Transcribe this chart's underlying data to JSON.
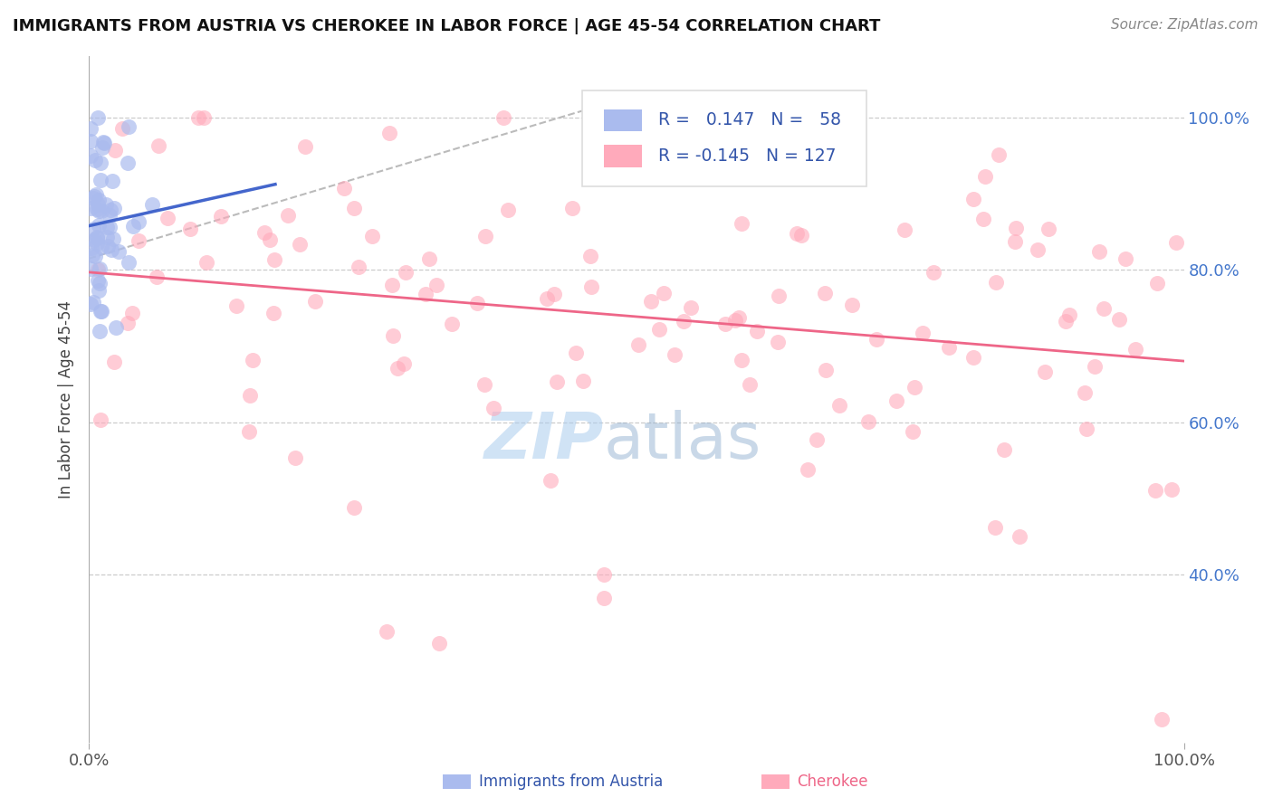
{
  "title": "IMMIGRANTS FROM AUSTRIA VS CHEROKEE IN LABOR FORCE | AGE 45-54 CORRELATION CHART",
  "source": "Source: ZipAtlas.com",
  "ylabel": "In Labor Force | Age 45-54",
  "austria_R": 0.147,
  "austria_N": 58,
  "cherokee_R": -0.145,
  "cherokee_N": 127,
  "austria_color": "#aabbee",
  "cherokee_color": "#ffaabb",
  "austria_line_color": "#4466cc",
  "cherokee_line_color": "#ee6688",
  "ref_line_color": "#bbbbbb",
  "background_color": "#ffffff",
  "grid_color": "#cccccc",
  "title_color": "#111111",
  "annotation_color": "#3355aa",
  "right_tick_color": "#4477cc",
  "xlim": [
    0.0,
    1.0
  ],
  "ylim": [
    0.18,
    1.08
  ],
  "yticks": [
    0.4,
    0.6,
    0.8,
    1.0
  ],
  "ytick_labels": [
    "40.0%",
    "60.0%",
    "80.0%",
    "100.0%"
  ],
  "xticks": [
    0.0,
    1.0
  ],
  "xtick_labels": [
    "0.0%",
    "100.0%"
  ],
  "watermark_zip": "ZIP",
  "watermark_atlas": "atlas",
  "legend_box_color": "#ffffff",
  "legend_border_color": "#dddddd"
}
